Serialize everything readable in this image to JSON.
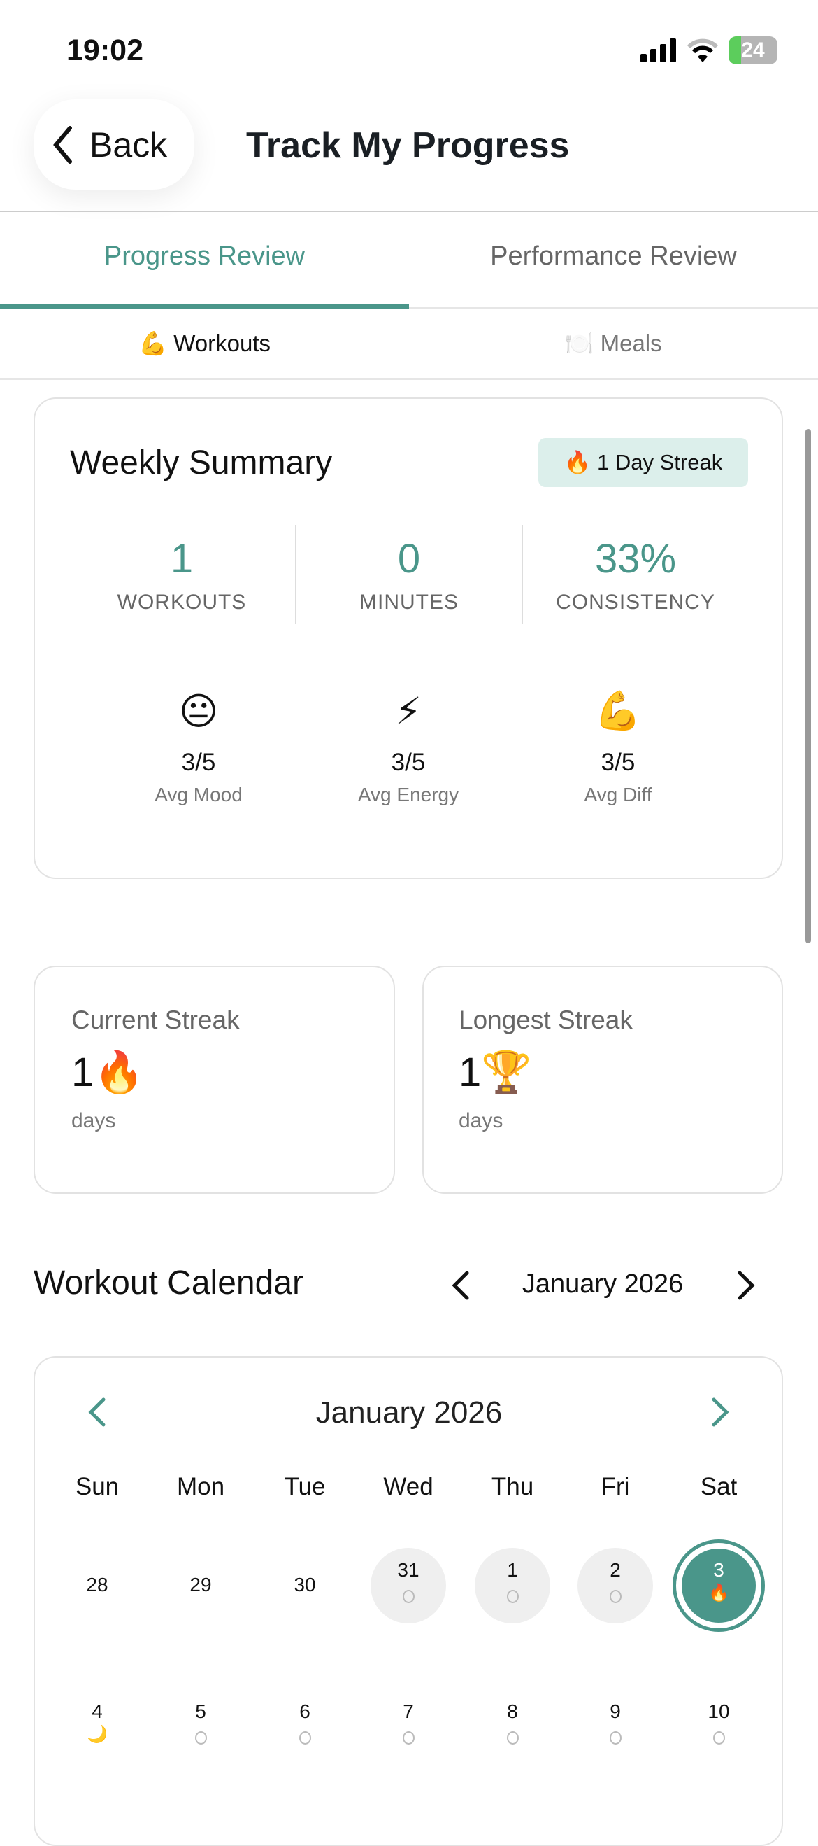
{
  "status_bar": {
    "time": "19:02",
    "battery": "24"
  },
  "header": {
    "back_label": "Back",
    "title": "Track My Progress"
  },
  "tabs": [
    {
      "label": "Progress Review",
      "active": true
    },
    {
      "label": "Performance Review",
      "active": false
    }
  ],
  "subtabs": [
    {
      "icon": "💪",
      "label": "Workouts",
      "active": true
    },
    {
      "icon": "🍽️",
      "label": "Meals",
      "active": false
    }
  ],
  "weekly_summary": {
    "title": "Weekly Summary",
    "streak_badge": {
      "icon": "🔥",
      "label": "1 Day Streak"
    },
    "stats": [
      {
        "value": "1",
        "label": "WORKOUTS"
      },
      {
        "value": "0",
        "label": "MINUTES"
      },
      {
        "value": "33%",
        "label": "CONSISTENCY"
      }
    ],
    "averages": [
      {
        "emoji": "😐",
        "value": "3/5",
        "label": "Avg Mood"
      },
      {
        "emoji": "⚡",
        "value": "3/5",
        "label": "Avg Energy"
      },
      {
        "emoji": "💪",
        "value": "3/5",
        "label": "Avg Diff"
      }
    ]
  },
  "streaks": [
    {
      "title": "Current Streak",
      "value": "1",
      "emoji": "🔥",
      "unit": "days"
    },
    {
      "title": "Longest Streak",
      "value": "1",
      "emoji": "🏆",
      "unit": "days"
    }
  ],
  "calendar": {
    "section_title": "Workout Calendar",
    "month": "January 2026",
    "weekdays": [
      "Sun",
      "Mon",
      "Tue",
      "Wed",
      "Thu",
      "Fri",
      "Sat"
    ],
    "rows": [
      [
        {
          "d": "28",
          "m": ""
        },
        {
          "d": "29",
          "m": ""
        },
        {
          "d": "30",
          "m": ""
        },
        {
          "d": "31",
          "m": "○",
          "s": "past"
        },
        {
          "d": "1",
          "m": "○",
          "s": "past"
        },
        {
          "d": "2",
          "m": "○",
          "s": "past"
        },
        {
          "d": "3",
          "m": "🔥",
          "s": "today"
        }
      ],
      [
        {
          "d": "4",
          "m": "🌙"
        },
        {
          "d": "5",
          "m": "○"
        },
        {
          "d": "6",
          "m": "○"
        },
        {
          "d": "7",
          "m": "○"
        },
        {
          "d": "8",
          "m": "○"
        },
        {
          "d": "9",
          "m": "○"
        },
        {
          "d": "10",
          "m": "○"
        }
      ]
    ]
  },
  "colors": {
    "accent": "#4a968a",
    "badge_bg": "#dcefeb"
  }
}
